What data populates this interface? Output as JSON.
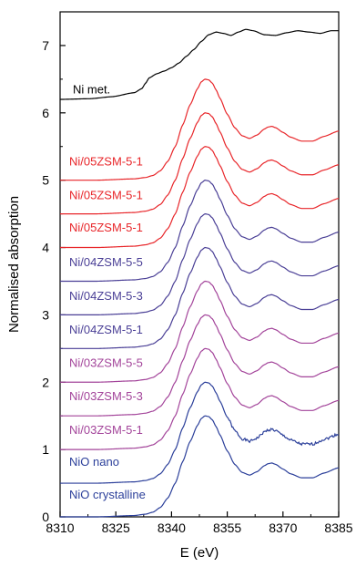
{
  "chart_data": {
    "type": "line",
    "title": "",
    "xlabel": "E (eV)",
    "ylabel": "Normalised absorption",
    "xlim": [
      8310,
      8385
    ],
    "ylim": [
      0,
      7.5
    ],
    "x_ticks": [
      8310,
      8325,
      8340,
      8355,
      8370,
      8385
    ],
    "x_tick_labels": [
      "8310",
      "8325",
      "8340",
      "8355",
      "8370",
      "8385"
    ],
    "y_ticks": [
      0,
      1,
      2,
      3,
      4,
      5,
      6,
      7
    ],
    "y_tick_labels": [
      "0",
      "1",
      "2",
      "3",
      "4",
      "5",
      "6",
      "7"
    ],
    "grid": false,
    "legend": "inline labels",
    "series": [
      {
        "name": "NiO crystalline",
        "color": "#2b3f9a",
        "offset": 0.0,
        "profile": "nio",
        "noise": 0
      },
      {
        "name": "NiO nano",
        "color": "#2b3f9a",
        "offset": 0.5,
        "profile": "nio",
        "noise": 0.02
      },
      {
        "name": "Ni/03ZSM-5-1",
        "color": "#a3449a",
        "offset": 1.0,
        "profile": "nio",
        "noise": 0
      },
      {
        "name": "Ni/03ZSM-5-3",
        "color": "#a3449a",
        "offset": 1.5,
        "profile": "nio",
        "noise": 0
      },
      {
        "name": "Ni/03ZSM-5-5",
        "color": "#a3449a",
        "offset": 2.0,
        "profile": "nio",
        "noise": 0
      },
      {
        "name": "Ni/04ZSM-5-1",
        "color": "#4a3f96",
        "offset": 2.5,
        "profile": "nio",
        "noise": 0
      },
      {
        "name": "Ni/04ZSM-5-3",
        "color": "#4a3f96",
        "offset": 3.0,
        "profile": "nio",
        "noise": 0
      },
      {
        "name": "Ni/04ZSM-5-5",
        "color": "#4a3f96",
        "offset": 3.5,
        "profile": "nio",
        "noise": 0
      },
      {
        "name": "Ni/05ZSM-5-1",
        "color": "#e8262a",
        "offset": 4.0,
        "profile": "nio",
        "noise": 0
      },
      {
        "name": "Ni/05ZSM-5-1",
        "color": "#e8262a",
        "offset": 4.5,
        "profile": "nio",
        "noise": 0
      },
      {
        "name": "Ni/05ZSM-5-1",
        "color": "#e8262a",
        "offset": 5.0,
        "profile": "nio",
        "noise": 0
      },
      {
        "name": "Ni met.",
        "color": "#000000",
        "offset": 6.2,
        "profile": "metal",
        "noise": 0
      }
    ],
    "profiles": {
      "nio": {
        "x": [
          8310,
          8320,
          8330,
          8333,
          8335,
          8337,
          8339,
          8341,
          8343,
          8345,
          8347,
          8348,
          8349,
          8350,
          8351,
          8352,
          8353,
          8355,
          8357,
          8359,
          8361,
          8363,
          8365,
          8366,
          8367,
          8368,
          8370,
          8372,
          8375,
          8378,
          8381,
          8385
        ],
        "y": [
          0.0,
          0.0,
          0.02,
          0.04,
          0.07,
          0.14,
          0.28,
          0.5,
          0.82,
          1.12,
          1.36,
          1.46,
          1.5,
          1.49,
          1.44,
          1.34,
          1.22,
          0.98,
          0.78,
          0.66,
          0.62,
          0.67,
          0.76,
          0.79,
          0.8,
          0.78,
          0.71,
          0.64,
          0.58,
          0.58,
          0.65,
          0.73
        ]
      },
      "metal": {
        "x": [
          8310,
          8318,
          8324,
          8330,
          8332,
          8333,
          8334,
          8336,
          8338,
          8340,
          8342,
          8344,
          8346,
          8348,
          8350,
          8352,
          8354,
          8356,
          8358,
          8360,
          8362,
          8365,
          8368,
          8371,
          8374,
          8377,
          8380,
          8383,
          8385
        ],
        "y": [
          0.0,
          0.01,
          0.04,
          0.1,
          0.16,
          0.24,
          0.32,
          0.38,
          0.42,
          0.47,
          0.54,
          0.64,
          0.74,
          0.86,
          0.96,
          1.0,
          0.98,
          0.95,
          1.0,
          1.04,
          1.02,
          0.96,
          0.95,
          0.99,
          1.02,
          1.0,
          0.98,
          1.02,
          1.02
        ]
      }
    }
  }
}
